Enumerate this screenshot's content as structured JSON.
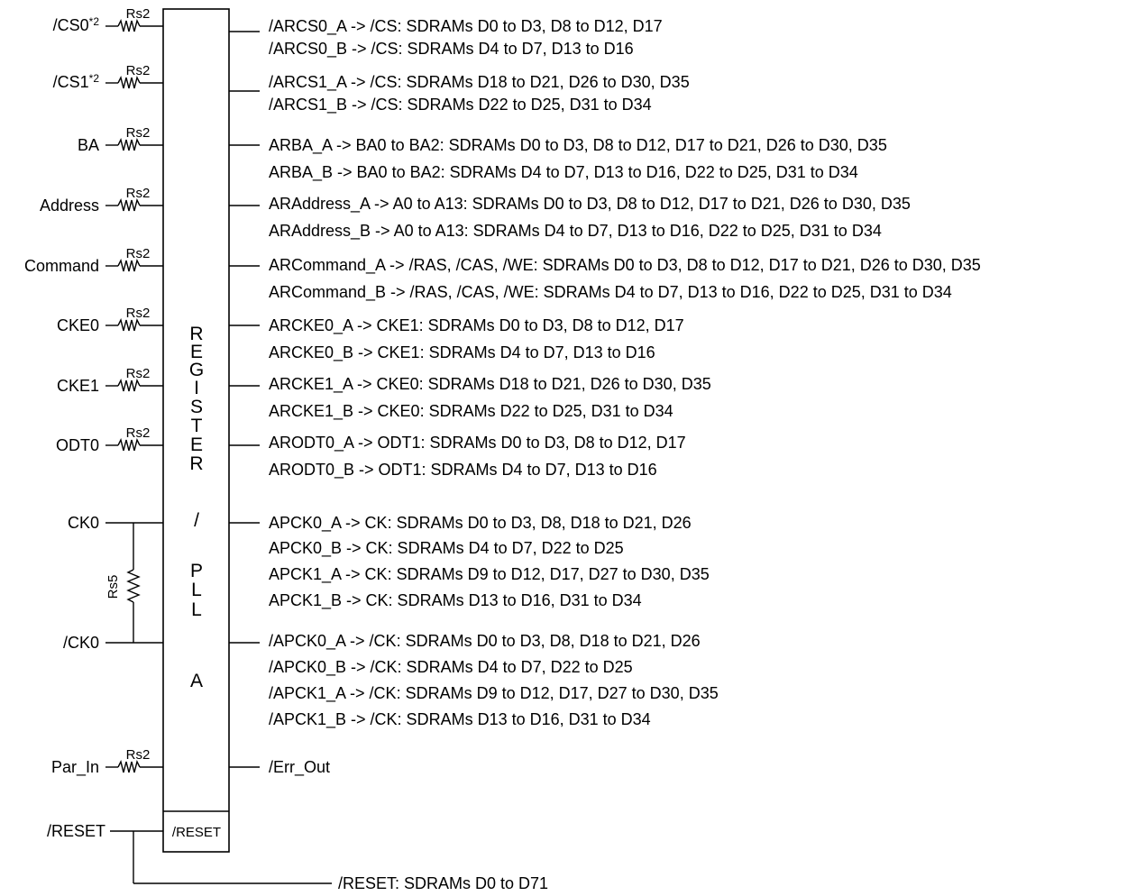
{
  "diagram": {
    "register_letters": [
      "R",
      "E",
      "G",
      "I",
      "S",
      "T",
      "E",
      "R",
      "/",
      "P",
      "L",
      "L",
      "A"
    ],
    "register_reset_pin": "/RESET",
    "inputs": [
      {
        "label": "/CS0",
        "sup": "*2",
        "resistor": "Rs2"
      },
      {
        "label": "/CS1",
        "sup": "*2",
        "resistor": "Rs2"
      },
      {
        "label": "BA",
        "sup": "",
        "resistor": "Rs2"
      },
      {
        "label": "Address",
        "sup": "",
        "resistor": "Rs2"
      },
      {
        "label": "Command",
        "sup": "",
        "resistor": "Rs2"
      },
      {
        "label": "CKE0",
        "sup": "",
        "resistor": "Rs2"
      },
      {
        "label": "CKE1",
        "sup": "",
        "resistor": "Rs2"
      },
      {
        "label": "ODT0",
        "sup": "",
        "resistor": "Rs2"
      },
      {
        "label": "Par_In",
        "sup": "",
        "resistor": "Rs2"
      }
    ],
    "clock": {
      "ck0": "CK0",
      "ck0_n": "/CK0",
      "resistor": "Rs5"
    },
    "reset_input": "/RESET",
    "outputs": [
      "/ARCS0_A -> /CS:  SDRAMs D0 to D3, D8 to D12, D17",
      "/ARCS0_B -> /CS:  SDRAMs D4 to D7, D13 to D16",
      "/ARCS1_A -> /CS:  SDRAMs D18 to D21, D26 to D30, D35",
      "/ARCS1_B -> /CS:  SDRAMs D22 to D25, D31 to D34",
      "ARBA_A -> BA0 to BA2: SDRAMs D0 to D3, D8 to D12, D17 to D21, D26 to D30, D35",
      "ARBA_B -> BA0 to BA2: SDRAMs D4 to D7, D13 to D16, D22 to D25, D31 to D34",
      "ARAddress_A -> A0 to A13:  SDRAMs D0 to D3, D8 to D12, D17 to D21, D26 to D30, D35",
      "ARAddress_B -> A0 to A13:  SDRAMs D4 to D7, D13 to D16, D22 to D25, D31 to D34",
      "ARCommand_A -> /RAS, /CAS, /WE:  SDRAMs D0 to D3, D8 to D12, D17 to D21, D26 to D30, D35",
      "ARCommand_B -> /RAS, /CAS, /WE:  SDRAMs D4 to D7, D13 to D16, D22 to D25, D31 to D34",
      "ARCKE0_A -> CKE1:   SDRAMs D0 to D3, D8 to D12, D17",
      "ARCKE0_B -> CKE1:   SDRAMs D4 to D7, D13 to D16",
      "ARCKE1_A -> CKE0:   SDRAMs D18 to D21, D26 to D30, D35",
      "ARCKE1_B -> CKE0:   SDRAMs D22 to D25, D31 to D34",
      "ARODT0_A -> ODT1:   SDRAMs D0 to D3, D8 to D12, D17",
      "ARODT0_B -> ODT1:   SDRAMs D4 to D7, D13 to D16",
      "APCK0_A -> CK:   SDRAMs D0 to D3, D8, D18 to D21, D26",
      "APCK0_B -> CK:   SDRAMs D4 to D7, D22 to D25",
      "APCK1_A -> CK:   SDRAMs D9 to D12, D17, D27 to D30, D35",
      "APCK1_B -> CK:   SDRAMs D13 to D16, D31 to D34",
      "/APCK0_A -> /CK:   SDRAMs D0 to D3, D8, D18 to D21, D26",
      "/APCK0_B -> /CK:   SDRAMs  D4 to D7, D22 to D25",
      "/APCK1_A -> /CK:   SDRAMs D9 to D12, D17, D27 to D30, D35",
      "/APCK1_B -> /CK:   SDRAMs D13 to D16, D31 to D34",
      "/Err_Out",
      "/RESET:   SDRAMs D0 to D71"
    ]
  }
}
